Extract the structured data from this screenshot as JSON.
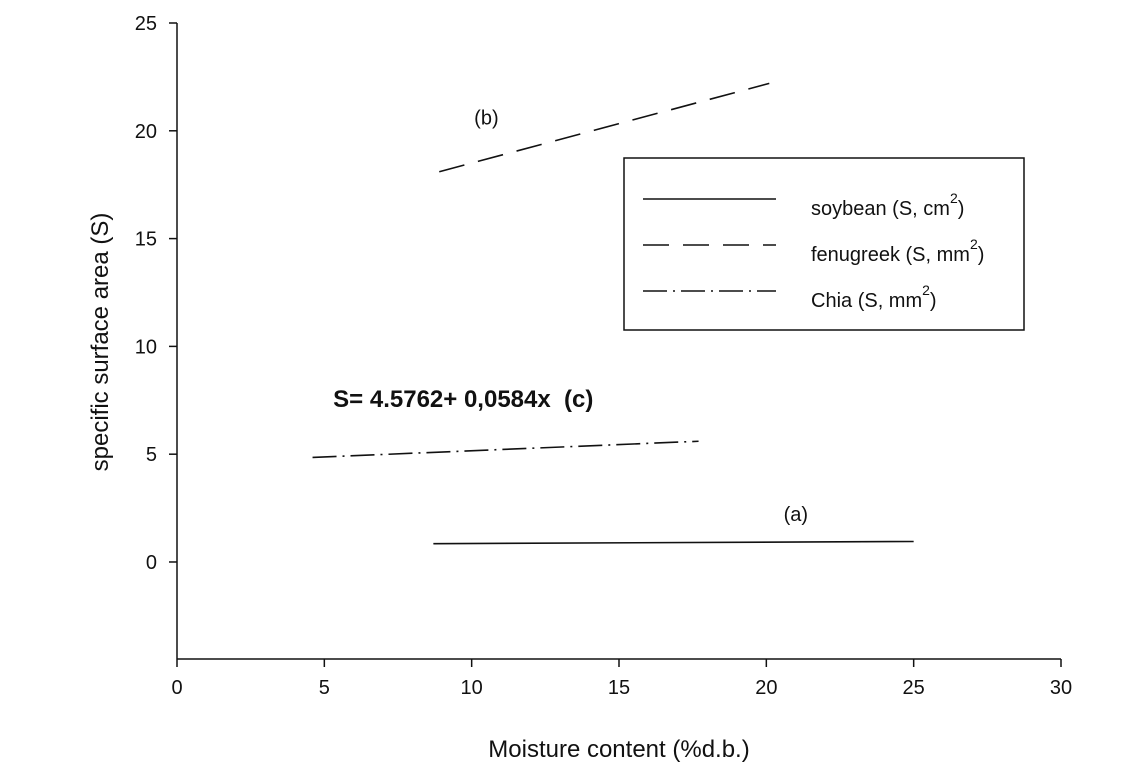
{
  "chart_data": {
    "type": "line",
    "title": "",
    "xlabel": "Moisture content (%d.b.)",
    "ylabel": "specific surface area (S)",
    "xlim": [
      0,
      30
    ],
    "ylim": [
      -4.5,
      25
    ],
    "xticks": [
      0,
      5,
      10,
      15,
      20,
      25,
      30
    ],
    "yticks": [
      0,
      5,
      10,
      15,
      20,
      25
    ],
    "grid": false,
    "legend_position": "top-right",
    "series": [
      {
        "name": "soybean (S, cm",
        "unit_exponent": "2",
        "unit_close": ")",
        "style": "solid",
        "x": [
          8.7,
          25.0
        ],
        "y": [
          0.85,
          0.95
        ]
      },
      {
        "name": "fenugreek (S, mm",
        "unit_exponent": "2",
        "unit_close": ")",
        "style": "dashed",
        "x": [
          8.9,
          20.1
        ],
        "y": [
          18.1,
          22.2
        ]
      },
      {
        "name": "Chia (S, mm",
        "unit_exponent": "2",
        "unit_close": ")",
        "style": "dash-dot",
        "x": [
          4.6,
          17.7
        ],
        "y": [
          4.85,
          5.6
        ]
      }
    ],
    "annotations": [
      {
        "text": "(a)",
        "x": 21.0,
        "y": 1.9
      },
      {
        "text": "(b)",
        "x": 10.5,
        "y": 20.3
      }
    ],
    "equation_label": {
      "text": "S= 4.5762+ 0,0584x  (c)",
      "x": 5.3,
      "y": 7.2
    }
  }
}
